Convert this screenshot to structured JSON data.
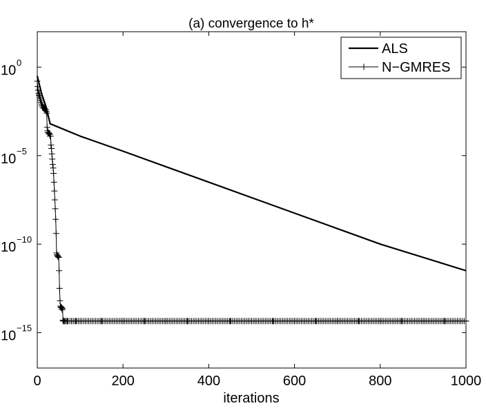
{
  "chart_data": {
    "type": "line",
    "title": "(a) convergence to h*",
    "xlabel": "iterations",
    "ylabel": "",
    "xlim": [
      0,
      1000
    ],
    "ylim_exponent": [
      -17,
      2
    ],
    "yscale": "log",
    "grid": false,
    "legend_position": "top-right",
    "x_ticks": [
      "0",
      "200",
      "400",
      "600",
      "800",
      "1000"
    ],
    "y_ticks": [
      {
        "base": "10",
        "exp": "0"
      },
      {
        "base": "10",
        "exp": "−5"
      },
      {
        "base": "10",
        "exp": "−10"
      },
      {
        "base": "10",
        "exp": "−15"
      }
    ],
    "series": [
      {
        "name": "ALS",
        "marker": "none",
        "color": "#000000",
        "points": [
          [
            0,
            -0.5
          ],
          [
            10,
            -1.5
          ],
          [
            20,
            -2.2
          ],
          [
            28,
            -3.0
          ],
          [
            30,
            -3.2
          ],
          [
            50,
            -3.4
          ],
          [
            100,
            -3.9
          ],
          [
            200,
            -4.75
          ],
          [
            400,
            -6.5
          ],
          [
            600,
            -8.25
          ],
          [
            800,
            -10.0
          ],
          [
            1000,
            -11.5
          ]
        ]
      },
      {
        "name": "N−GMRES",
        "marker": "plus",
        "color": "#000000",
        "points": [
          [
            0,
            -0.8
          ],
          [
            1,
            -1.1
          ],
          [
            2,
            -1.3
          ],
          [
            3,
            -1.5
          ],
          [
            4,
            -1.6
          ],
          [
            5,
            -1.5
          ],
          [
            6,
            -1.7
          ],
          [
            7,
            -1.8
          ],
          [
            8,
            -1.9
          ],
          [
            9,
            -2.0
          ],
          [
            10,
            -2.1
          ],
          [
            11,
            -2.2
          ],
          [
            12,
            -2.2
          ],
          [
            13,
            -2.3
          ],
          [
            14,
            -2.3
          ],
          [
            15,
            -2.3
          ],
          [
            16,
            -2.3
          ],
          [
            17,
            -2.35
          ],
          [
            18,
            -2.4
          ],
          [
            19,
            -2.4
          ],
          [
            20,
            -2.4
          ],
          [
            21,
            -2.5
          ],
          [
            22,
            -2.6
          ],
          [
            23,
            -3.4
          ],
          [
            24,
            -3.6
          ],
          [
            25,
            -3.7
          ],
          [
            26,
            -3.7
          ],
          [
            27,
            -3.75
          ],
          [
            28,
            -3.75
          ],
          [
            29,
            -3.8
          ],
          [
            30,
            -3.9
          ],
          [
            31,
            -3.9
          ],
          [
            32,
            -4.4
          ],
          [
            33,
            -4.6
          ],
          [
            34,
            -4.9
          ],
          [
            35,
            -5.2
          ],
          [
            36,
            -5.5
          ],
          [
            37,
            -5.7
          ],
          [
            38,
            -6.0
          ],
          [
            39,
            -6.5
          ],
          [
            40,
            -7.0
          ],
          [
            41,
            -7.5
          ],
          [
            42,
            -8.0
          ],
          [
            43,
            -8.6
          ],
          [
            44,
            -9.4
          ],
          [
            45,
            -10.5
          ],
          [
            46,
            -10.6
          ],
          [
            47,
            -10.65
          ],
          [
            48,
            -10.7
          ],
          [
            49,
            -10.7
          ],
          [
            50,
            -10.75
          ],
          [
            51,
            -11.5
          ],
          [
            52,
            -12.5
          ],
          [
            53,
            -13.2
          ],
          [
            54,
            -13.5
          ],
          [
            55,
            -13.6
          ],
          [
            56,
            -13.55
          ],
          [
            57,
            -13.6
          ],
          [
            58,
            -13.7
          ],
          [
            59,
            -13.65
          ],
          [
            60,
            -14.3
          ],
          [
            62,
            -14.35
          ],
          [
            65,
            -14.35
          ],
          [
            70,
            -14.35
          ],
          [
            80,
            -14.35
          ],
          [
            90,
            -14.35
          ],
          [
            100,
            -14.35
          ],
          [
            150,
            -14.35
          ],
          [
            200,
            -14.35
          ],
          [
            250,
            -14.35
          ],
          [
            300,
            -14.35
          ],
          [
            350,
            -14.35
          ],
          [
            400,
            -14.35
          ],
          [
            450,
            -14.35
          ],
          [
            500,
            -14.35
          ],
          [
            550,
            -14.35
          ],
          [
            600,
            -14.35
          ],
          [
            650,
            -14.35
          ],
          [
            700,
            -14.35
          ],
          [
            750,
            -14.35
          ],
          [
            800,
            -14.35
          ],
          [
            850,
            -14.35
          ],
          [
            900,
            -14.35
          ],
          [
            950,
            -14.35
          ],
          [
            1000,
            -14.35
          ]
        ]
      }
    ]
  }
}
